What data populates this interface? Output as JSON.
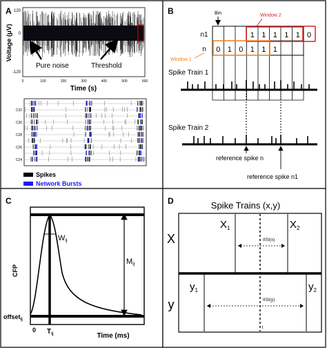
{
  "panel_a": {
    "letter": "A",
    "ylabel": "Voltage (μV)",
    "xlabel": "Time (s)",
    "yticks": [
      "120",
      "0",
      "-120"
    ],
    "xticks": [
      "0",
      "100",
      "200",
      "300",
      "400",
      "500",
      "600"
    ],
    "annotations": {
      "pure_noise": "Pure noise",
      "threshold": "Threshold"
    },
    "raster_rows": [
      "C32",
      "C30",
      "C28",
      "C26",
      "C24"
    ],
    "legend": {
      "spikes": "Spikes",
      "bursts": "Network Bursts"
    },
    "colors": {
      "spikes": "#000000",
      "bursts": "#1a1aff",
      "threshold_box": "#cc0000"
    }
  },
  "panel_b": {
    "letter": "B",
    "bin_label": "Bin",
    "window1_label": "Window 1",
    "window2_label": "Window 2",
    "row_labels": [
      "n1",
      "n"
    ],
    "n1_values": [
      "1",
      "1",
      "1",
      "1",
      "1",
      "0"
    ],
    "n_values": [
      "0",
      "1",
      "0",
      "1",
      "1",
      "1"
    ],
    "train1_label": "Spike Train 1",
    "train2_label": "Spike Train 2",
    "ref_n": "reference spike n",
    "ref_n1": "reference spike n1",
    "colors": {
      "window1": "#f07d1a",
      "window2": "#e02020"
    }
  },
  "panel_c": {
    "letter": "C",
    "ylabel": "CFP",
    "xlabel": "Time (ms)",
    "x0": "0",
    "offset_label": "offset",
    "offset_sub": "ij",
    "w_label": "W",
    "w_sub": "ij",
    "m_label": "M",
    "m_sub": "ij",
    "t_label": "T",
    "t_sub": "ij"
  },
  "panel_d": {
    "letter": "D",
    "title": "Spike Trains (x,y)",
    "row_x": "X",
    "row_y": "y",
    "x1": "X",
    "x1_sub": "1",
    "x2": "X",
    "x2_sub": "2",
    "y1": "y",
    "y1_sub": "1",
    "y2": "y",
    "y2_sub": "2",
    "isi_x": "IISI(x)",
    "isi_y": "IISI(y)",
    "t_label": "t"
  }
}
